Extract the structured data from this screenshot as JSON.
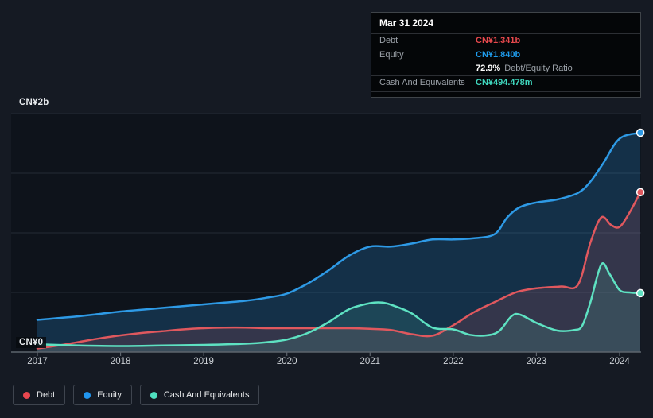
{
  "page": {
    "background": "#151a23",
    "plot_background": "#0e131b"
  },
  "y_axis": {
    "top_label": "CN¥2b",
    "zero_label": "CN¥0"
  },
  "x_axis": {
    "years": [
      "2017",
      "2018",
      "2019",
      "2020",
      "2021",
      "2022",
      "2023",
      "2024"
    ]
  },
  "tooltip": {
    "date": "Mar 31 2024",
    "debt_label": "Debt",
    "debt_value": "CN¥1.341b",
    "debt_color": "#e8494d",
    "equity_label": "Equity",
    "equity_value": "CN¥1.840b",
    "equity_color": "#1f9ced",
    "ratio_value": "72.9%",
    "ratio_label": "Debt/Equity Ratio",
    "cash_label": "Cash And Equivalents",
    "cash_value": "CN¥494.478m",
    "cash_color": "#3fd6bd"
  },
  "legend": [
    {
      "label": "Debt",
      "color": "#e8474f"
    },
    {
      "label": "Equity",
      "color": "#2196ef"
    },
    {
      "label": "Cash And Equivalents",
      "color": "#4fe0c0"
    }
  ],
  "chart_data": {
    "type": "area",
    "x_unit": "year",
    "y_unit": "CN¥ billions",
    "ylim": [
      0,
      2
    ],
    "xlim": [
      2017,
      2024.25
    ],
    "y_gridline_values": [
      0,
      0.5,
      1,
      1.5,
      2
    ],
    "y_tick_labels": [
      "CN¥0",
      "CN¥2b"
    ],
    "x_tick_years": [
      2017,
      2018,
      2019,
      2020,
      2021,
      2022,
      2023,
      2024
    ],
    "grid": true,
    "legend_position": "bottom-left",
    "end_values": {
      "debt_b": 1.341,
      "equity_b": 1.84,
      "cash_b": 0.494478,
      "debt_equity_ratio_pct": 72.9
    },
    "series": [
      {
        "name": "Debt",
        "color": "#e0585e",
        "fill_opacity": 0.16,
        "points": [
          [
            2017.0,
            0.03
          ],
          [
            2017.25,
            0.055
          ],
          [
            2017.5,
            0.085
          ],
          [
            2017.75,
            0.115
          ],
          [
            2018.0,
            0.14
          ],
          [
            2018.25,
            0.16
          ],
          [
            2018.5,
            0.175
          ],
          [
            2018.75,
            0.19
          ],
          [
            2019.0,
            0.2
          ],
          [
            2019.25,
            0.205
          ],
          [
            2019.5,
            0.205
          ],
          [
            2019.75,
            0.2
          ],
          [
            2020.0,
            0.2
          ],
          [
            2020.25,
            0.2
          ],
          [
            2020.5,
            0.2
          ],
          [
            2020.75,
            0.2
          ],
          [
            2021.0,
            0.195
          ],
          [
            2021.25,
            0.185
          ],
          [
            2021.5,
            0.15
          ],
          [
            2021.75,
            0.137
          ],
          [
            2022.0,
            0.225
          ],
          [
            2022.25,
            0.335
          ],
          [
            2022.5,
            0.42
          ],
          [
            2022.75,
            0.5
          ],
          [
            2023.0,
            0.535
          ],
          [
            2023.3,
            0.55
          ],
          [
            2023.5,
            0.565
          ],
          [
            2023.65,
            0.92
          ],
          [
            2023.78,
            1.13
          ],
          [
            2023.9,
            1.065
          ],
          [
            2024.0,
            1.05
          ],
          [
            2024.12,
            1.17
          ],
          [
            2024.25,
            1.341
          ]
        ]
      },
      {
        "name": "Equity",
        "color": "#2e9ae6",
        "fill_opacity": 0.22,
        "points": [
          [
            2017.0,
            0.27
          ],
          [
            2017.25,
            0.285
          ],
          [
            2017.5,
            0.3
          ],
          [
            2017.75,
            0.32
          ],
          [
            2018.0,
            0.34
          ],
          [
            2018.25,
            0.355
          ],
          [
            2018.5,
            0.37
          ],
          [
            2018.75,
            0.385
          ],
          [
            2019.0,
            0.4
          ],
          [
            2019.25,
            0.415
          ],
          [
            2019.5,
            0.43
          ],
          [
            2019.75,
            0.455
          ],
          [
            2020.0,
            0.49
          ],
          [
            2020.25,
            0.575
          ],
          [
            2020.5,
            0.685
          ],
          [
            2020.75,
            0.81
          ],
          [
            2021.0,
            0.885
          ],
          [
            2021.25,
            0.885
          ],
          [
            2021.5,
            0.91
          ],
          [
            2021.75,
            0.945
          ],
          [
            2022.0,
            0.945
          ],
          [
            2022.25,
            0.955
          ],
          [
            2022.5,
            0.99
          ],
          [
            2022.65,
            1.13
          ],
          [
            2022.8,
            1.215
          ],
          [
            2023.0,
            1.255
          ],
          [
            2023.25,
            1.28
          ],
          [
            2023.5,
            1.335
          ],
          [
            2023.65,
            1.43
          ],
          [
            2023.8,
            1.58
          ],
          [
            2024.0,
            1.79
          ],
          [
            2024.25,
            1.84
          ]
        ]
      },
      {
        "name": "Cash And Equivalents",
        "color": "#5ee2c2",
        "fill_opacity": 0.13,
        "points": [
          [
            2017.0,
            0.065
          ],
          [
            2017.5,
            0.055
          ],
          [
            2018.0,
            0.05
          ],
          [
            2018.5,
            0.055
          ],
          [
            2019.0,
            0.06
          ],
          [
            2019.5,
            0.07
          ],
          [
            2019.75,
            0.082
          ],
          [
            2020.0,
            0.105
          ],
          [
            2020.25,
            0.16
          ],
          [
            2020.5,
            0.25
          ],
          [
            2020.75,
            0.36
          ],
          [
            2021.0,
            0.41
          ],
          [
            2021.15,
            0.415
          ],
          [
            2021.3,
            0.385
          ],
          [
            2021.5,
            0.325
          ],
          [
            2021.75,
            0.205
          ],
          [
            2022.0,
            0.19
          ],
          [
            2022.2,
            0.145
          ],
          [
            2022.4,
            0.14
          ],
          [
            2022.55,
            0.175
          ],
          [
            2022.7,
            0.3
          ],
          [
            2022.8,
            0.315
          ],
          [
            2023.0,
            0.245
          ],
          [
            2023.25,
            0.18
          ],
          [
            2023.45,
            0.185
          ],
          [
            2023.55,
            0.22
          ],
          [
            2023.65,
            0.42
          ],
          [
            2023.78,
            0.735
          ],
          [
            2023.88,
            0.655
          ],
          [
            2024.0,
            0.52
          ],
          [
            2024.12,
            0.5
          ],
          [
            2024.25,
            0.494
          ]
        ]
      }
    ]
  }
}
